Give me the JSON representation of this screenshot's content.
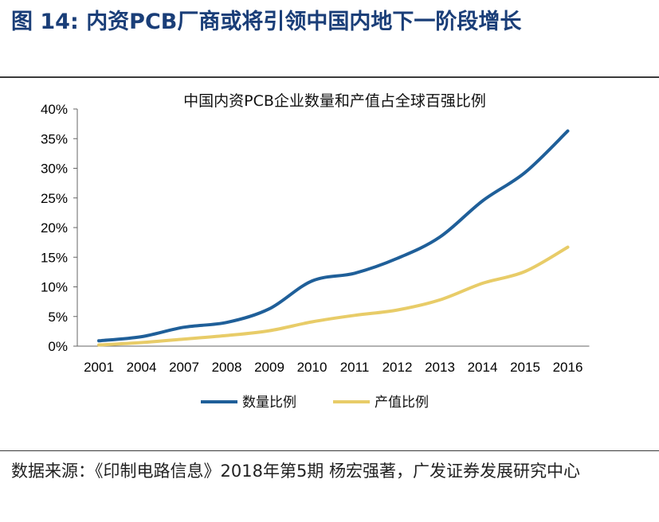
{
  "figure": {
    "label": "图 14:",
    "title": "内资PCB厂商或将引领中国内地下一阶段增长"
  },
  "source": {
    "text": "数据来源：《印制电路信息》2018年第5期 杨宏强著，广发证券发展研究中心"
  },
  "chart_data": {
    "type": "line",
    "title": "中国内资PCB企业数量和产值占全球百强比例",
    "categories": [
      "2001",
      "2004",
      "2007",
      "2008",
      "2009",
      "2010",
      "2011",
      "2012",
      "2013",
      "2014",
      "2015",
      "2016"
    ],
    "series": [
      {
        "name": "数量比例",
        "color": "#1f5f99",
        "values": [
          0.9,
          1.6,
          3.2,
          4.0,
          6.3,
          11.0,
          12.3,
          14.8,
          18.4,
          24.5,
          29.3,
          36.3
        ]
      },
      {
        "name": "产值比例",
        "color": "#e8cc68",
        "values": [
          0.2,
          0.6,
          1.2,
          1.8,
          2.6,
          4.1,
          5.2,
          6.1,
          7.8,
          10.6,
          12.6,
          16.7
        ]
      }
    ],
    "y_ticks": [
      "0%",
      "5%",
      "10%",
      "15%",
      "20%",
      "25%",
      "30%",
      "35%",
      "40%"
    ],
    "ylim": [
      0,
      40
    ],
    "legend_position": "bottom",
    "grid": false
  }
}
